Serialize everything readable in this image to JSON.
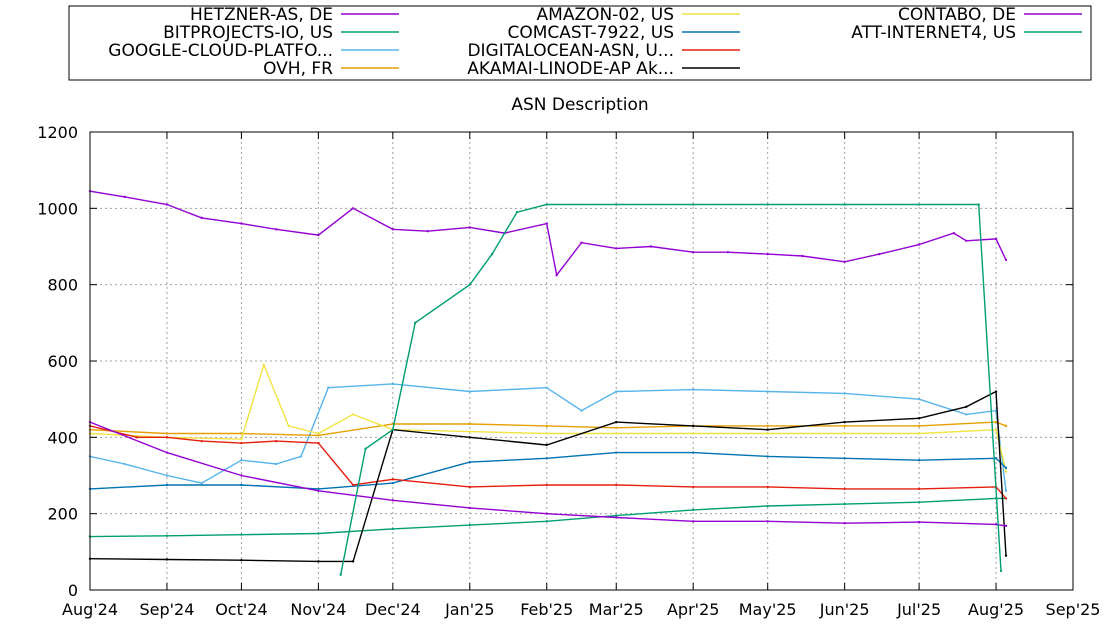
{
  "chart_data": {
    "type": "line",
    "title": "ASN Description",
    "xlabel": "",
    "ylabel": "",
    "ylim": [
      0,
      1200
    ],
    "xlim": [
      "2024-08-01",
      "2025-09-01"
    ],
    "grid": true,
    "legend_position": "top",
    "y_ticks": [
      "0",
      "200",
      "400",
      "600",
      "800",
      "1000",
      "1200"
    ],
    "x_ticks": [
      {
        "label": "Aug'24",
        "date": "2024-08-01"
      },
      {
        "label": "Sep'24",
        "date": "2024-09-01"
      },
      {
        "label": "Oct'24",
        "date": "2024-10-01"
      },
      {
        "label": "Nov'24",
        "date": "2024-11-01"
      },
      {
        "label": "Dec'24",
        "date": "2024-12-01"
      },
      {
        "label": "Jan'25",
        "date": "2025-01-01"
      },
      {
        "label": "Feb'25",
        "date": "2025-02-01"
      },
      {
        "label": "Mar'25",
        "date": "2025-03-01"
      },
      {
        "label": "Apr'25",
        "date": "2025-04-01"
      },
      {
        "label": "May'25",
        "date": "2025-05-01"
      },
      {
        "label": "Jun'25",
        "date": "2025-06-01"
      },
      {
        "label": "Jul'25",
        "date": "2025-07-01"
      },
      {
        "label": "Aug'25",
        "date": "2025-08-01"
      },
      {
        "label": "Sep'25",
        "date": "2025-09-01"
      }
    ],
    "series": [
      {
        "name": "HETZNER-AS, DE",
        "color": "#9400d3",
        "x": [
          "2024-08-01",
          "2024-08-15",
          "2024-09-01",
          "2024-09-15",
          "2024-10-01",
          "2024-10-15",
          "2024-11-01",
          "2024-11-15",
          "2024-12-01",
          "2024-12-15",
          "2025-01-01",
          "2025-01-15",
          "2025-02-01",
          "2025-02-05",
          "2025-02-15",
          "2025-03-01",
          "2025-03-15",
          "2025-04-01",
          "2025-04-15",
          "2025-05-01",
          "2025-05-15",
          "2025-06-01",
          "2025-06-15",
          "2025-07-01",
          "2025-07-15",
          "2025-07-20",
          "2025-08-01",
          "2025-08-05"
        ],
        "y": [
          1045,
          1030,
          1010,
          975,
          960,
          945,
          930,
          1000,
          945,
          940,
          950,
          935,
          960,
          825,
          910,
          895,
          900,
          885,
          885,
          880,
          875,
          860,
          880,
          905,
          935,
          915,
          920,
          865
        ]
      },
      {
        "name": "BITPROJECTS-IO, US",
        "color": "#009e73",
        "x": [
          "2024-08-01",
          "2024-09-01",
          "2024-10-01",
          "2024-11-01",
          "2024-12-01",
          "2025-01-01",
          "2025-02-01",
          "2025-03-01",
          "2025-04-01",
          "2025-05-01",
          "2025-06-01",
          "2025-07-01",
          "2025-08-01",
          "2025-08-05"
        ],
        "y": [
          140,
          142,
          145,
          148,
          160,
          170,
          180,
          195,
          210,
          220,
          225,
          230,
          240,
          240
        ]
      },
      {
        "name": "GOOGLE-CLOUD-PLATFO...",
        "color": "#56b4e9",
        "x": [
          "2024-08-01",
          "2024-08-15",
          "2024-09-01",
          "2024-09-15",
          "2024-10-01",
          "2024-10-15",
          "2024-10-25",
          "2024-11-05",
          "2024-12-01",
          "2025-01-01",
          "2025-02-01",
          "2025-02-15",
          "2025-03-01",
          "2025-04-01",
          "2025-05-01",
          "2025-06-01",
          "2025-07-01",
          "2025-07-20",
          "2025-08-01",
          "2025-08-05"
        ],
        "y": [
          350,
          330,
          300,
          280,
          340,
          330,
          350,
          530,
          540,
          520,
          530,
          470,
          520,
          525,
          520,
          515,
          500,
          460,
          470,
          260
        ]
      },
      {
        "name": "OVH, FR",
        "color": "#e69f00",
        "x": [
          "2024-08-01",
          "2024-09-01",
          "2024-10-01",
          "2024-11-01",
          "2024-12-01",
          "2025-01-01",
          "2025-02-01",
          "2025-03-01",
          "2025-04-01",
          "2025-05-01",
          "2025-06-01",
          "2025-07-01",
          "2025-08-01",
          "2025-08-05"
        ],
        "y": [
          420,
          410,
          410,
          405,
          435,
          435,
          430,
          425,
          430,
          430,
          430,
          430,
          440,
          430
        ]
      },
      {
        "name": "AMAZON-02, US",
        "color": "#f0e442",
        "x": [
          "2024-08-01",
          "2024-09-01",
          "2024-10-01",
          "2024-10-10",
          "2024-10-20",
          "2024-11-01",
          "2024-11-15",
          "2024-12-01",
          "2025-01-01",
          "2025-02-01",
          "2025-03-01",
          "2025-04-01",
          "2025-05-01",
          "2025-06-01",
          "2025-07-01",
          "2025-08-01",
          "2025-08-05"
        ],
        "y": [
          410,
          400,
          395,
          590,
          430,
          410,
          460,
          420,
          415,
          410,
          410,
          410,
          410,
          410,
          410,
          420,
          310
        ]
      },
      {
        "name": "COMCAST-7922, US",
        "color": "#0072b2",
        "x": [
          "2024-08-01",
          "2024-09-01",
          "2024-10-01",
          "2024-11-01",
          "2024-12-01",
          "2025-01-01",
          "2025-02-01",
          "2025-03-01",
          "2025-04-01",
          "2025-05-01",
          "2025-06-01",
          "2025-07-01",
          "2025-08-01",
          "2025-08-05"
        ],
        "y": [
          265,
          275,
          275,
          265,
          280,
          335,
          345,
          360,
          360,
          350,
          345,
          340,
          345,
          320
        ]
      },
      {
        "name": "DIGITALOCEAN-ASN, U...",
        "color": "#e51e10",
        "x": [
          "2024-08-01",
          "2024-08-20",
          "2024-09-01",
          "2024-09-15",
          "2024-10-01",
          "2024-10-15",
          "2024-11-01",
          "2024-11-15",
          "2024-12-01",
          "2025-01-01",
          "2025-02-01",
          "2025-03-01",
          "2025-04-01",
          "2025-05-01",
          "2025-06-01",
          "2025-07-01",
          "2025-08-01",
          "2025-08-05"
        ],
        "y": [
          430,
          400,
          400,
          390,
          385,
          390,
          385,
          275,
          290,
          270,
          275,
          275,
          270,
          270,
          265,
          265,
          270,
          240
        ]
      },
      {
        "name": "AKAMAI-LINODE-AP Ak...",
        "color": "#000000",
        "x": [
          "2024-08-01",
          "2024-09-01",
          "2024-10-01",
          "2024-11-01",
          "2024-11-15",
          "2024-12-01",
          "2025-01-01",
          "2025-02-01",
          "2025-03-01",
          "2025-04-01",
          "2025-05-01",
          "2025-06-01",
          "2025-07-01",
          "2025-07-20",
          "2025-08-01",
          "2025-08-05"
        ],
        "y": [
          82,
          80,
          78,
          75,
          75,
          420,
          400,
          380,
          440,
          430,
          420,
          440,
          450,
          480,
          520,
          90
        ]
      },
      {
        "name": "CONTABO, DE",
        "color": "#9400d3",
        "x": [
          "2024-08-01",
          "2024-09-01",
          "2024-10-01",
          "2024-11-01",
          "2024-12-01",
          "2025-01-01",
          "2025-02-01",
          "2025-03-01",
          "2025-04-01",
          "2025-05-01",
          "2025-06-01",
          "2025-07-01",
          "2025-08-01",
          "2025-08-05"
        ],
        "y": [
          440,
          360,
          300,
          260,
          235,
          215,
          200,
          190,
          180,
          180,
          175,
          178,
          172,
          168
        ]
      },
      {
        "name": "ATT-INTERNET4, US",
        "color": "#009e73",
        "x": [
          "2024-08-01",
          "2024-10-01",
          "2024-11-01",
          "2024-11-10",
          "2024-11-20",
          "2024-12-01",
          "2024-12-10",
          "2025-01-01",
          "2025-01-10",
          "2025-01-20",
          "2025-02-01",
          "2025-03-01",
          "2025-04-01",
          "2025-05-01",
          "2025-06-01",
          "2025-07-01",
          "2025-07-25",
          "2025-08-03"
        ],
        "y": [
          null,
          null,
          null,
          40,
          370,
          420,
          700,
          800,
          880,
          990,
          1010,
          1010,
          1010,
          1010,
          1010,
          1010,
          1010,
          50
        ]
      }
    ]
  }
}
